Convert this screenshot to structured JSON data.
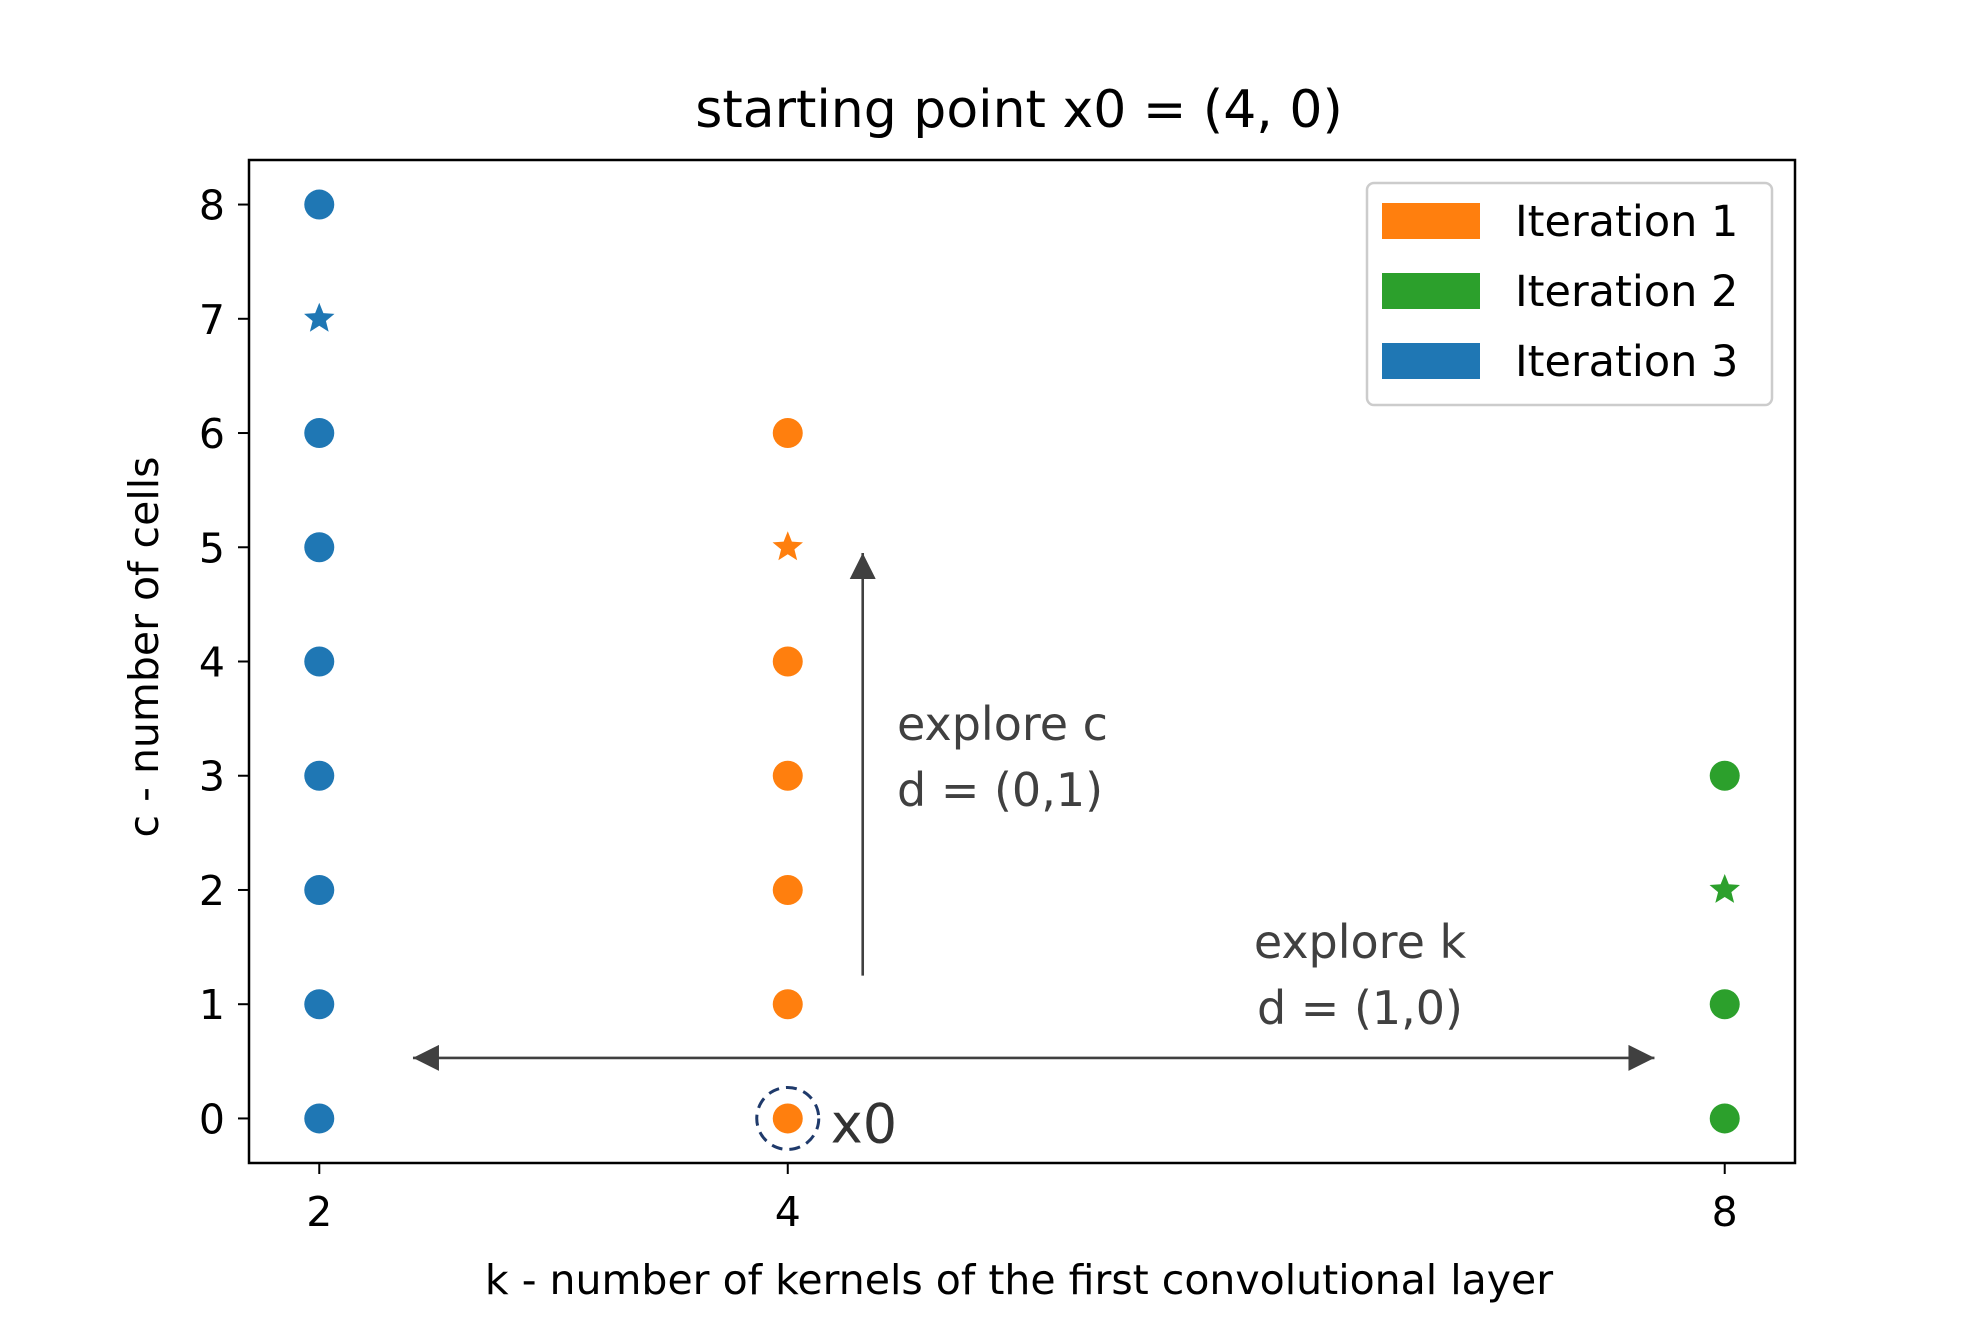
{
  "chart_data": {
    "type": "scatter",
    "title": "starting point x0 = (4, 0)",
    "xlabel": "k - number of kernels of the first convolutional layer",
    "ylabel": "c - number of cells",
    "xlim": [
      1.7,
      8.3
    ],
    "ylim": [
      -0.39,
      8.39
    ],
    "x_ticks": [
      {
        "value": 2,
        "label": "2"
      },
      {
        "value": 4,
        "label": "4"
      },
      {
        "value": 8,
        "label": "8"
      }
    ],
    "y_ticks": [
      {
        "value": 0,
        "label": "0"
      },
      {
        "value": 1,
        "label": "1"
      },
      {
        "value": 2,
        "label": "2"
      },
      {
        "value": 3,
        "label": "3"
      },
      {
        "value": 4,
        "label": "4"
      },
      {
        "value": 5,
        "label": "5"
      },
      {
        "value": 6,
        "label": "6"
      },
      {
        "value": 7,
        "label": "7"
      },
      {
        "value": 8,
        "label": "8"
      }
    ],
    "grid": false,
    "legend_position": "top-right",
    "series": [
      {
        "name": "Iteration 1",
        "color": "#ff7f0e",
        "points": [
          [
            4,
            0
          ],
          [
            4,
            1
          ],
          [
            4,
            2
          ],
          [
            4,
            3
          ],
          [
            4,
            4
          ],
          [
            4,
            6
          ]
        ],
        "best": [
          4,
          5
        ]
      },
      {
        "name": "Iteration 2",
        "color": "#2ca02c",
        "points": [
          [
            8,
            0
          ],
          [
            8,
            1
          ],
          [
            8,
            3
          ]
        ],
        "best": [
          8,
          2
        ]
      },
      {
        "name": "Iteration 3",
        "color": "#1f77b4",
        "points": [
          [
            2,
            0
          ],
          [
            2,
            1
          ],
          [
            2,
            2
          ],
          [
            2,
            3
          ],
          [
            2,
            4
          ],
          [
            2,
            5
          ],
          [
            2,
            6
          ],
          [
            2,
            8
          ]
        ],
        "best": [
          2,
          7
        ]
      }
    ],
    "starting_point": {
      "x": 4,
      "y": 0,
      "label": "x0",
      "ring_color": "#1f3a6b"
    },
    "annotations": [
      {
        "line1": "explore c",
        "line2": "d = (0,1)",
        "arrow_from": [
          4.32,
          1.25
        ],
        "arrow_to": [
          4.32,
          4.95
        ],
        "direction": "up"
      },
      {
        "line1": "explore k",
        "line2": "d = (1,0)",
        "arrow_from": [
          2.4,
          0.53
        ],
        "arrow_to": [
          7.7,
          0.53
        ],
        "direction": "both"
      }
    ],
    "annotation_color": "#404040"
  }
}
